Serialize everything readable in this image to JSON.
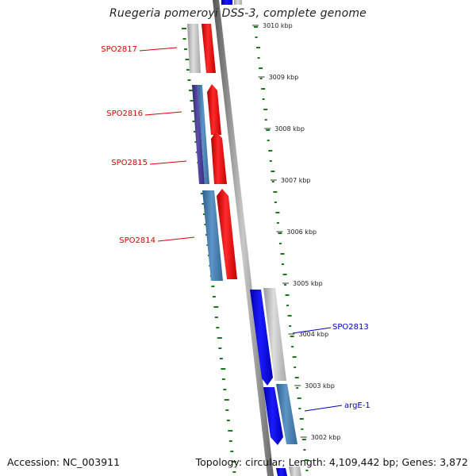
{
  "title": "Ruegeria pomeroyi DSS-3, complete genome",
  "footer": {
    "accession": "Accession: NC_003911",
    "summary": "Topology: circular; Length: 4,109,442 bp; Genes: 3,872"
  },
  "ticks": [
    "3010 kbp",
    "3009 kbp",
    "3008 kbp",
    "3007 kbp",
    "3006 kbp",
    "3005 kbp",
    "3004 kbp",
    "3003 kbp",
    "3002 kbp"
  ],
  "genes": [
    {
      "name": "SPO2817",
      "strand": "reverse"
    },
    {
      "name": "SPO2816",
      "strand": "reverse"
    },
    {
      "name": "SPO2815",
      "strand": "reverse"
    },
    {
      "name": "SPO2814",
      "strand": "reverse"
    },
    {
      "name": "SPO2813",
      "strand": "forward"
    },
    {
      "name": "argE-1",
      "strand": "forward"
    }
  ],
  "colors": {
    "reverse_cds": "#ff0000",
    "forward_cds": "#0000ee",
    "reverse_label": "#dd0000",
    "forward_label": "#0000cc",
    "cog_grey": "#bbbbbb",
    "cog_steelblue": "#4682b4",
    "cog_darkslate": "#483d8b",
    "backbone": "#888888",
    "gc_ticks": "#1a7a1a"
  }
}
